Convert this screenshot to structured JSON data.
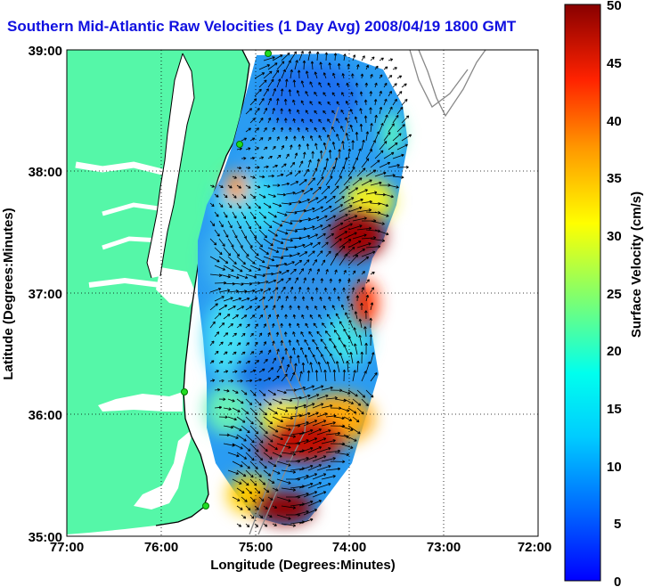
{
  "title": "Southern Mid-Atlantic Raw Velocities (1 Day Avg) 2008/04/19 1800 GMT",
  "map": {
    "x_label": "Longitude (Degrees:Minutes)",
    "y_label": "Latitude (Degrees:Minutes)",
    "x_ticks": [
      "77:00",
      "76:00",
      "75:00",
      "74:00",
      "73:00",
      "72:00"
    ],
    "y_ticks": [
      "39:00",
      "38:00",
      "37:00",
      "36:00",
      "35:00"
    ],
    "grid": "dotted",
    "colors": {
      "land": "#55f7a8",
      "water": "#ffffff",
      "coast": "#000000",
      "bathymetry": "#888888",
      "stations": "#22dd22"
    }
  },
  "colorbar": {
    "label": "Surface Velocity (cm/s)",
    "ticks": [
      "50",
      "45",
      "40",
      "35",
      "30",
      "25",
      "20",
      "15",
      "10",
      "5",
      "0"
    ],
    "min": 0,
    "max": 50,
    "colormap": "jet"
  }
}
